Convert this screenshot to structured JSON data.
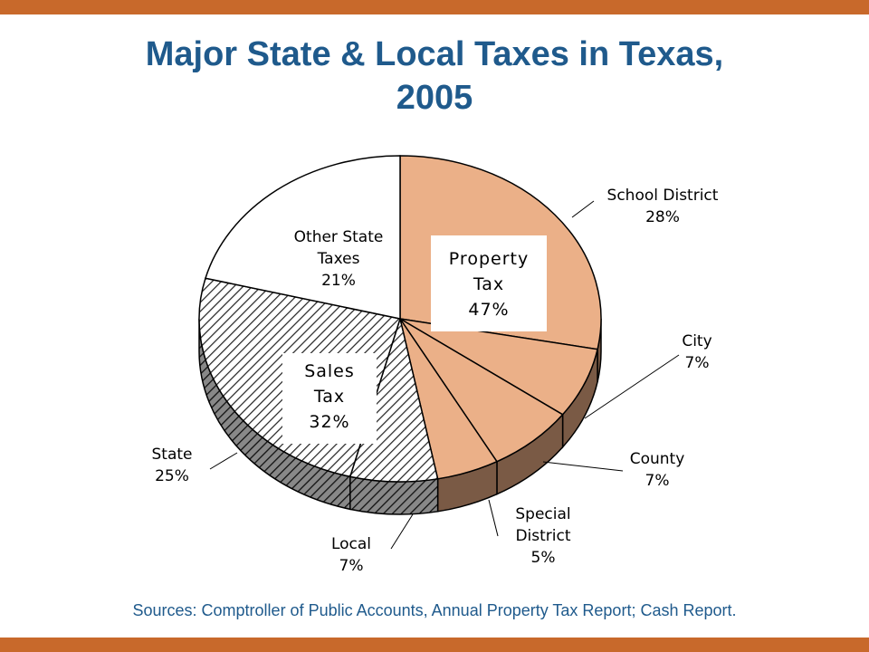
{
  "title_line1": "Major State & Local Taxes in Texas,",
  "title_line2": "2005",
  "source": "Sources: Comptroller of Public Accounts, Annual Property Tax Report; Cash Report.",
  "colors": {
    "accent_bar": "#c8692b",
    "title": "#1f5a8c",
    "property": "#ebb088",
    "property_side": "#7a5a45",
    "sales_hatch": "#222222",
    "other": "#ffffff",
    "highlight_label": "#e02020"
  },
  "chart_data": {
    "type": "pie",
    "title": "Major State & Local Taxes in Texas, 2005",
    "slices": [
      {
        "label": "School District",
        "value": 28,
        "display": "28%",
        "group": "property",
        "highlight": true
      },
      {
        "label": "City",
        "value": 7,
        "display": "7%",
        "group": "property"
      },
      {
        "label": "County",
        "value": 7,
        "display": "7%",
        "group": "property"
      },
      {
        "label": "Special District",
        "value": 5,
        "display": "5%",
        "group": "property"
      },
      {
        "label": "Local",
        "value": 7,
        "display": "7%",
        "group": "sales"
      },
      {
        "label": "State",
        "value": 25,
        "display": "25%",
        "group": "sales"
      },
      {
        "label": "Other State Taxes",
        "value": 21,
        "display": "21%",
        "group": "other"
      }
    ],
    "groups": [
      {
        "key": "property",
        "label": "Property Tax",
        "display": "47%"
      },
      {
        "key": "sales",
        "label": "Sales Tax",
        "display": "32%"
      }
    ]
  }
}
